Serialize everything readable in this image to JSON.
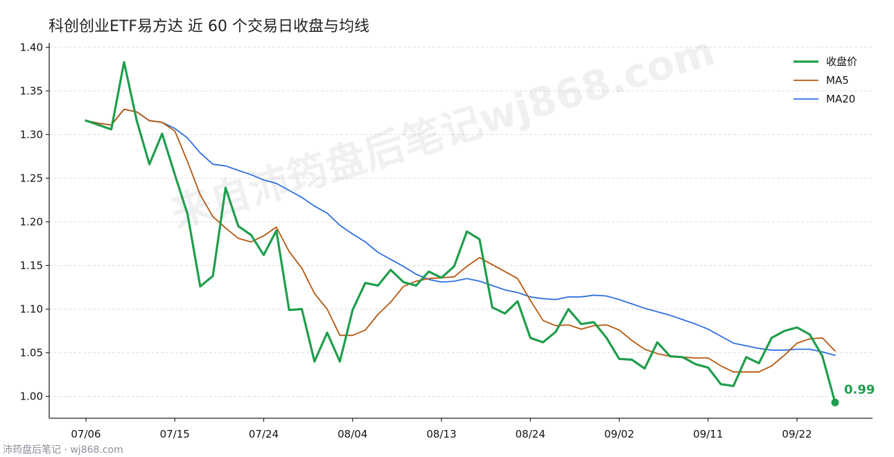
{
  "watermark": "来自沛筠盘后笔记wj868.com",
  "footer": "沛筠盘后笔记 · wj868.com",
  "colors": {
    "close": "#1f9d4c",
    "ma5": "#b5560e",
    "ma20": "#2f6fe0",
    "grid": "#dddddd",
    "axis": "#222222"
  },
  "chart_data": {
    "type": "line",
    "title": "科创创业ETF易方达 近 60 个交易日收盘与均线",
    "xlabel": "",
    "ylabel": "",
    "ylim": [
      0.975,
      1.405
    ],
    "yticks": [
      "1.00",
      "1.05",
      "1.10",
      "1.15",
      "1.20",
      "1.25",
      "1.30",
      "1.35",
      "1.40"
    ],
    "ytick_values": [
      1.0,
      1.05,
      1.1,
      1.15,
      1.2,
      1.25,
      1.3,
      1.35,
      1.4
    ],
    "xticks": [
      {
        "label": "07/06",
        "index": 0
      },
      {
        "label": "07/15",
        "index": 7
      },
      {
        "label": "07/24",
        "index": 14
      },
      {
        "label": "08/04",
        "index": 21
      },
      {
        "label": "08/13",
        "index": 28
      },
      {
        "label": "08/24",
        "index": 35
      },
      {
        "label": "09/02",
        "index": 42
      },
      {
        "label": "09/11",
        "index": 49
      },
      {
        "label": "09/22",
        "index": 56
      }
    ],
    "grid": "horizontal",
    "legend_position": "top-right",
    "x_count": 60,
    "series": [
      {
        "name": "收盘价",
        "color": "#1f9d4c",
        "values": [
          1.316,
          1.311,
          1.306,
          1.383,
          1.316,
          1.266,
          1.301,
          1.254,
          1.209,
          1.126,
          1.138,
          1.239,
          1.195,
          1.185,
          1.162,
          1.19,
          1.099,
          1.1,
          1.04,
          1.073,
          1.04,
          1.099,
          1.13,
          1.127,
          1.145,
          1.131,
          1.127,
          1.143,
          1.136,
          1.149,
          1.189,
          1.18,
          1.102,
          1.095,
          1.109,
          1.067,
          1.062,
          1.074,
          1.1,
          1.083,
          1.085,
          1.067,
          1.043,
          1.042,
          1.032,
          1.062,
          1.046,
          1.045,
          1.037,
          1.033,
          1.014,
          1.012,
          1.045,
          1.038,
          1.067,
          1.075,
          1.079,
          1.071,
          1.046,
          0.993
        ]
      },
      {
        "name": "MA5",
        "color": "#b5560e",
        "values": [
          1.316,
          1.313,
          1.311,
          1.329,
          1.326,
          1.316,
          1.314,
          1.304,
          1.269,
          1.231,
          1.206,
          1.193,
          1.181,
          1.177,
          1.184,
          1.194,
          1.166,
          1.147,
          1.118,
          1.1,
          1.07,
          1.07,
          1.076,
          1.094,
          1.108,
          1.126,
          1.132,
          1.135,
          1.136,
          1.137,
          1.149,
          1.159,
          1.151,
          1.143,
          1.135,
          1.11,
          1.087,
          1.081,
          1.082,
          1.077,
          1.081,
          1.082,
          1.076,
          1.064,
          1.054,
          1.049,
          1.046,
          1.045,
          1.044,
          1.044,
          1.035,
          1.028,
          1.028,
          1.028,
          1.035,
          1.047,
          1.061,
          1.066,
          1.067,
          1.052
        ]
      },
      {
        "name": "MA20",
        "color": "#2f6fe0",
        "values": [
          1.316,
          1.313,
          1.311,
          1.329,
          1.326,
          1.316,
          1.314,
          1.307,
          1.296,
          1.279,
          1.266,
          1.264,
          1.259,
          1.254,
          1.248,
          1.244,
          1.236,
          1.228,
          1.218,
          1.21,
          1.196,
          1.186,
          1.177,
          1.165,
          1.157,
          1.149,
          1.14,
          1.134,
          1.131,
          1.132,
          1.135,
          1.132,
          1.127,
          1.122,
          1.119,
          1.114,
          1.112,
          1.111,
          1.114,
          1.114,
          1.116,
          1.115,
          1.111,
          1.106,
          1.101,
          1.097,
          1.093,
          1.088,
          1.083,
          1.077,
          1.069,
          1.061,
          1.058,
          1.055,
          1.053,
          1.053,
          1.054,
          1.054,
          1.051,
          1.047
        ]
      }
    ],
    "annotations": [
      {
        "text": "0.99",
        "index": 59,
        "value": 0.993,
        "series": "收盘价"
      }
    ]
  }
}
